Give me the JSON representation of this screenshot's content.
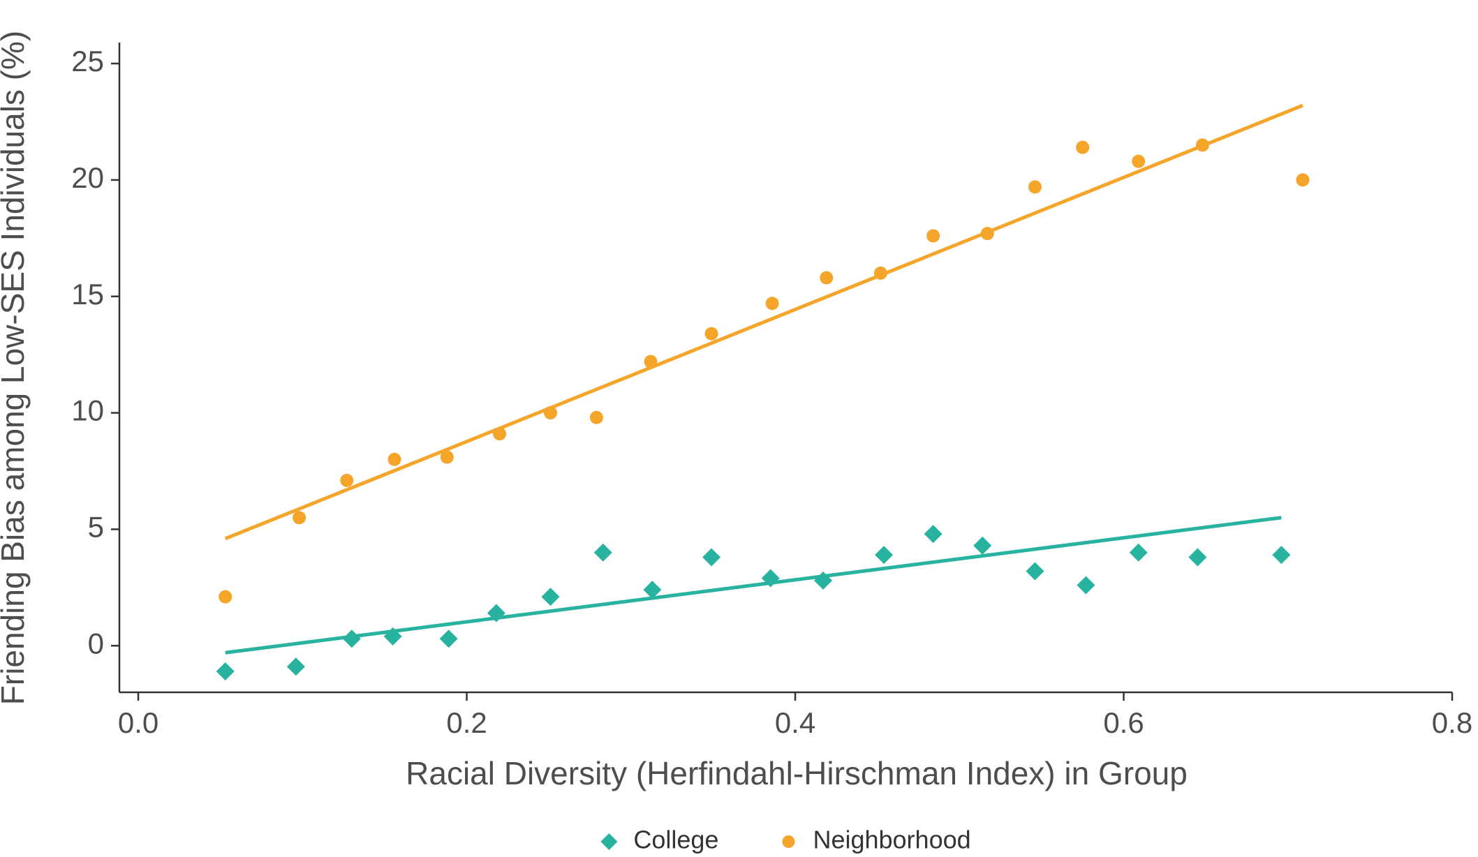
{
  "chart_data": {
    "type": "scatter",
    "x_label": "Racial Diversity (Herfindahl-Hirschman Index) in Group",
    "y_label": "Friending Bias among Low-SES Individuals (%)",
    "xlim": [
      -0.0115,
      0.8
    ],
    "ylim": [
      -2.0,
      25.9
    ],
    "xticks": [
      {
        "value": 0,
        "label": "0.0"
      },
      0.2,
      0.4,
      0.6,
      0.8
    ],
    "yticks": [
      0,
      5,
      10,
      15,
      20,
      25
    ],
    "grid": false,
    "legend": "bottom",
    "series": [
      {
        "name": "College",
        "color": "#27b3a0",
        "marker": "diamond",
        "x": [
          0.053,
          0.096,
          0.13,
          0.155,
          0.189,
          0.218,
          0.251,
          0.283,
          0.313,
          0.349,
          0.385,
          0.417,
          0.454,
          0.484,
          0.514,
          0.546,
          0.577,
          0.609,
          0.645,
          0.696
        ],
        "values": [
          -1.1,
          -0.9,
          0.3,
          0.4,
          0.3,
          1.4,
          2.1,
          4.0,
          2.4,
          3.8,
          2.9,
          2.8,
          3.9,
          4.8,
          4.3,
          3.2,
          2.6,
          4.0,
          3.8,
          3.9
        ],
        "trend": {
          "x": [
            0.053,
            0.696
          ],
          "values": [
            -0.3,
            5.5
          ]
        }
      },
      {
        "name": "Neighborhood",
        "color": "#f4a52a",
        "marker": "circle",
        "x": [
          0.053,
          0.098,
          0.127,
          0.156,
          0.188,
          0.22,
          0.251,
          0.279,
          0.312,
          0.349,
          0.386,
          0.419,
          0.452,
          0.484,
          0.517,
          0.546,
          0.575,
          0.609,
          0.648,
          0.709
        ],
        "values": [
          2.1,
          5.5,
          7.1,
          8.0,
          8.1,
          9.1,
          10.0,
          9.8,
          12.2,
          13.4,
          14.7,
          15.8,
          16.0,
          17.6,
          17.7,
          19.7,
          21.4,
          20.8,
          21.5,
          20.0
        ],
        "trend": {
          "x": [
            0.053,
            0.709
          ],
          "values": [
            4.6,
            23.2
          ]
        }
      }
    ]
  }
}
